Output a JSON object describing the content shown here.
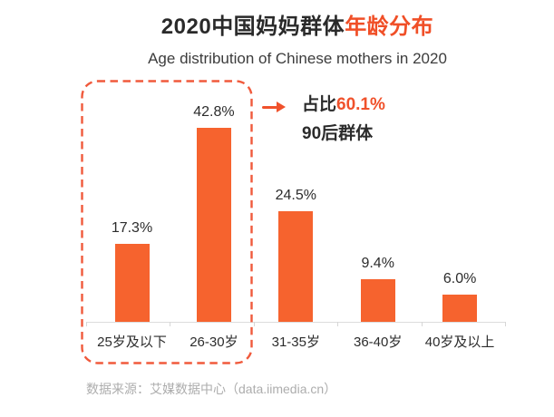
{
  "header": {
    "title_main": "2020中国妈妈群体",
    "title_highlight": "年龄分布",
    "subtitle": "Age distribution of Chinese mothers in 2020"
  },
  "chart_data": {
    "type": "bar",
    "title": "2020中国妈妈群体年龄分布",
    "categories": [
      "25岁及以下",
      "26-30岁",
      "31-35岁",
      "36-40岁",
      "40岁及以上"
    ],
    "values": [
      17.3,
      42.8,
      24.5,
      9.4,
      6.0
    ],
    "value_labels": [
      "17.3%",
      "42.8%",
      "24.5%",
      "9.4%",
      "6.0%"
    ],
    "xlabel": "",
    "ylabel": "",
    "ylim": [
      0,
      45
    ],
    "grid": false,
    "legend": false,
    "bar_color": "#f6632e",
    "axis_color": "#dcdcdc",
    "highlighted_group": {
      "categories": [
        "25岁及以下",
        "26-30岁"
      ],
      "combined_share": "60.1%"
    }
  },
  "annotation": {
    "arrow_icon": "right-arrow",
    "line1_prefix": "占比",
    "line1_value": "60.1%",
    "line2": "90后群体",
    "highlight_color": "#f0512b",
    "box_color": "#f05a3c"
  },
  "footer": {
    "source": "数据来源：艾媒数据中心（data.iimedia.cn）"
  }
}
